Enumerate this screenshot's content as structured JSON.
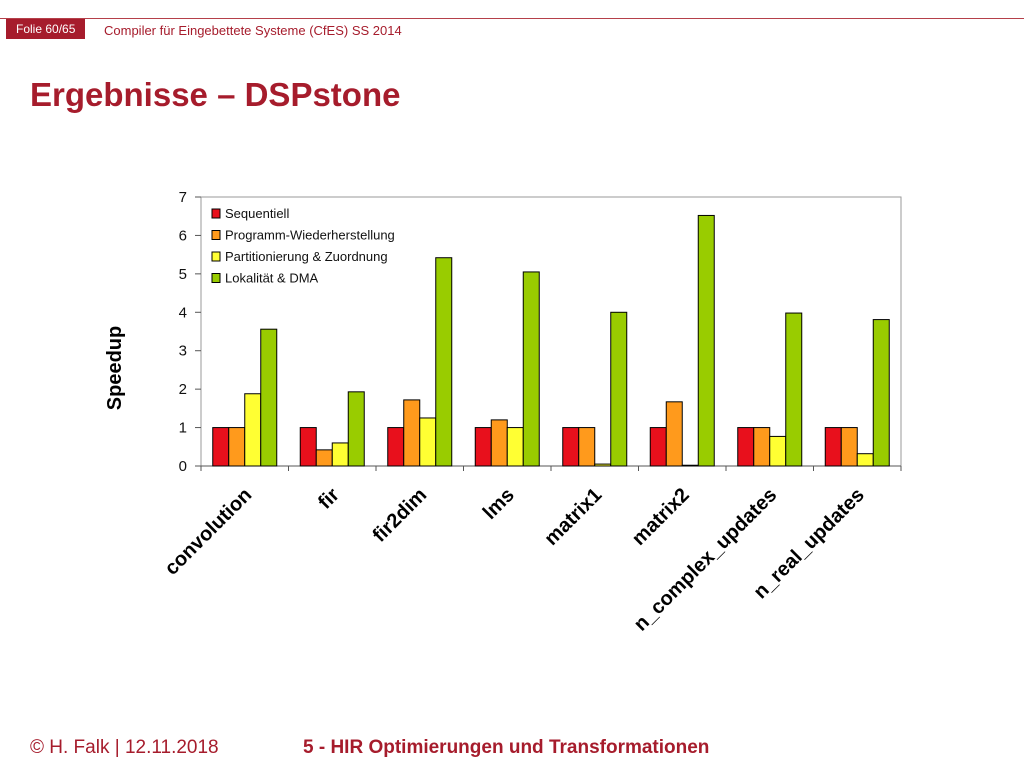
{
  "header": {
    "folio": "Folie 60/65",
    "course": "Compiler für Eingebettete Systeme (CfES) SS 2014"
  },
  "slide": {
    "title": "Ergebnisse – DSPstone"
  },
  "footer": {
    "author": "© H. Falk | 12.11.2018",
    "section": "5 - HIR Optimierungen und Transformationen"
  },
  "colors": {
    "brand": "#a61c2c",
    "series": [
      "#e8101c",
      "#ff9a1c",
      "#ffff33",
      "#99cc00"
    ]
  },
  "chart_data": {
    "type": "bar",
    "ylabel": "Speedup",
    "xlabel": "",
    "ylim": [
      0,
      7
    ],
    "yticks": [
      0,
      1,
      2,
      3,
      4,
      5,
      6,
      7
    ],
    "grid": false,
    "legend_position": "top-left",
    "categories": [
      "convolution",
      "fir",
      "fir2dim",
      "lms",
      "matrix1",
      "matrix2",
      "n_complex_updates",
      "n_real_updates"
    ],
    "series": [
      {
        "name": "Sequentiell",
        "values": [
          1,
          1,
          1,
          1,
          1,
          1,
          1,
          1
        ]
      },
      {
        "name": "Programm-Wiederherstellung",
        "values": [
          1,
          0.42,
          1.72,
          1.2,
          1,
          1.67,
          1,
          1
        ]
      },
      {
        "name": "Partitionierung & Zuordnung",
        "values": [
          1.88,
          0.6,
          1.25,
          1,
          0.05,
          0.02,
          0.77,
          0.32
        ]
      },
      {
        "name": "Lokalität & DMA",
        "values": [
          3.56,
          1.93,
          5.42,
          5.05,
          4,
          6.52,
          3.98,
          3.81
        ]
      }
    ]
  }
}
